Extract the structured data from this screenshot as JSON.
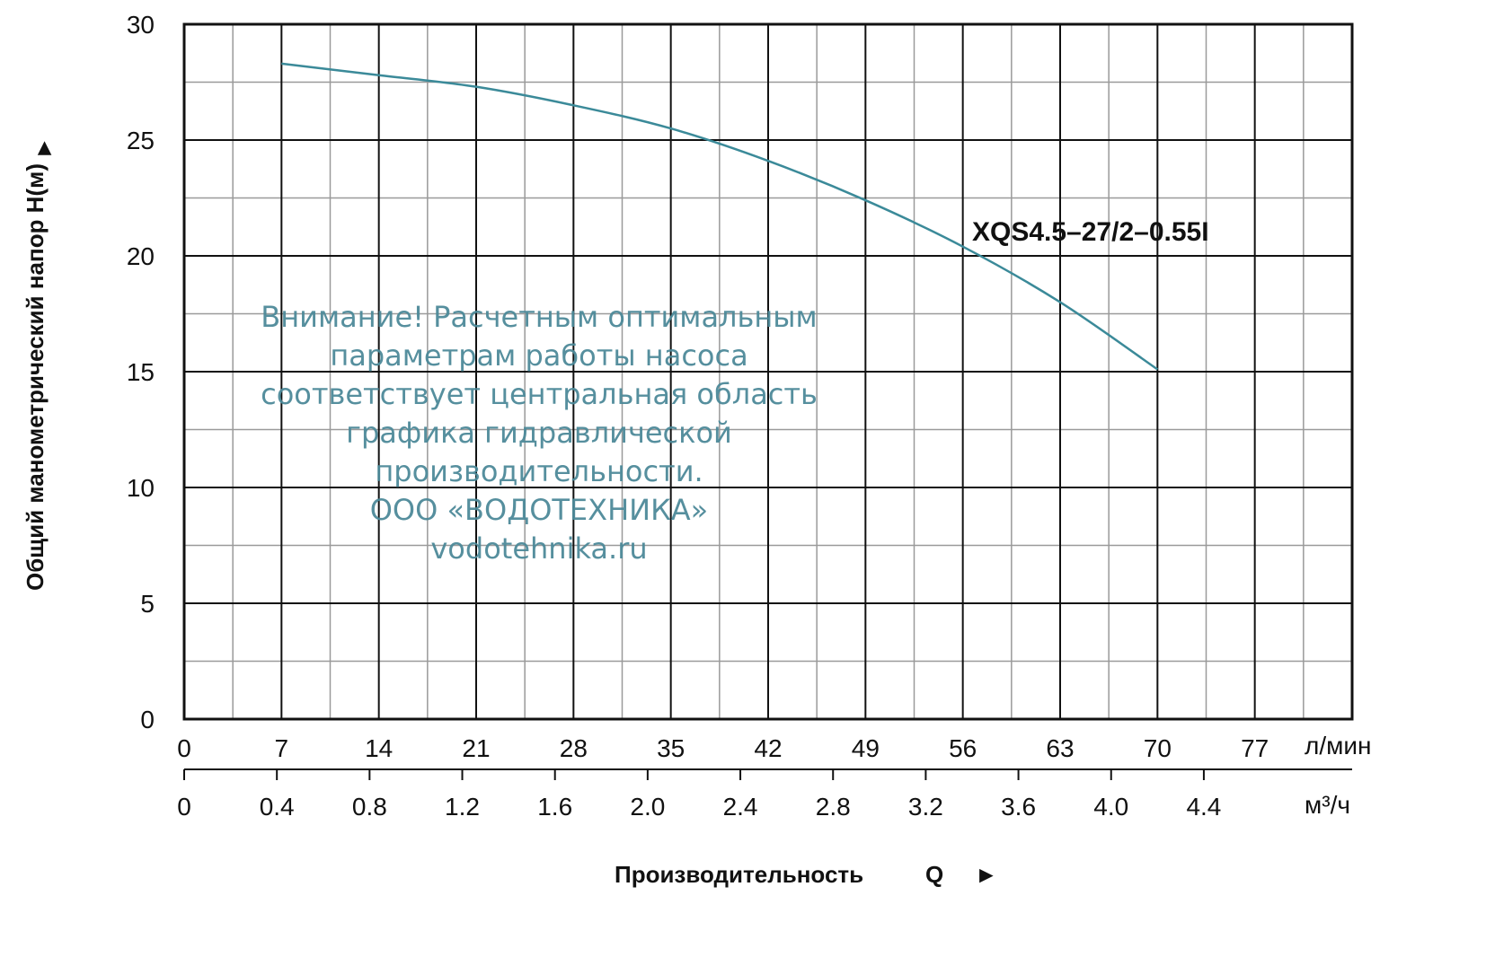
{
  "chart_data": {
    "type": "line",
    "ylabel": "Общий манометрический напор H(м)",
    "ylabel_arrow": "►",
    "xlabel": "Производительность",
    "xlabel_symbol": "Q",
    "xlabel_arrow": "►",
    "x_unit_primary": "л/мин",
    "x_unit_secondary": "м³/ч",
    "xlim": [
      0,
      84
    ],
    "ylim": [
      0,
      30
    ],
    "x_ticks_primary": [
      "0",
      "7",
      "14",
      "21",
      "28",
      "35",
      "42",
      "49",
      "56",
      "63",
      "70",
      "77"
    ],
    "x_ticks_secondary": [
      "0",
      "0.4",
      "0.8",
      "1.2",
      "1.6",
      "2.0",
      "2.4",
      "2.8",
      "3.2",
      "3.6",
      "4.0",
      "4.4"
    ],
    "y_ticks": [
      "0",
      "5",
      "10",
      "15",
      "20",
      "25",
      "30"
    ],
    "grid": true,
    "series": [
      {
        "name": "XQS4.5-27/2-0.55I",
        "color": "#3b8a99",
        "x": [
          7,
          14,
          21,
          28,
          35,
          42,
          49,
          56,
          63,
          70
        ],
        "y": [
          28.3,
          27.8,
          27.3,
          26.5,
          25.5,
          24.1,
          22.4,
          20.4,
          18.0,
          15.1
        ]
      }
    ],
    "series_label": "XQS4.5–27/2–0.55I",
    "annotation_lines": [
      "Внимание! Расчетным оптимальным",
      "параметрам работы насоса",
      "соответствует центральная область",
      "графика гидравлической",
      "производительности.",
      "ООО «ВОДОТЕХНИКА»",
      "vodotehnika.ru"
    ]
  }
}
